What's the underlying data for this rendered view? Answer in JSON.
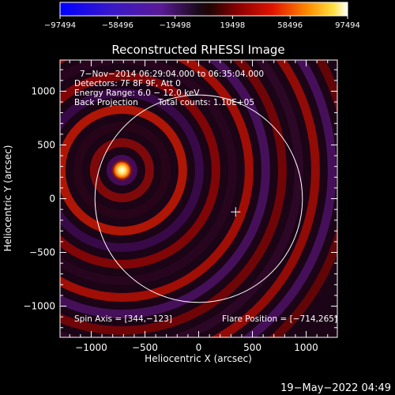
{
  "chart_data": {
    "type": "heatmap",
    "title": "Reconstructed RHESSI Image",
    "xlabel": "Heliocentric X (arcsec)",
    "ylabel": "Heliocentric Y (arcsec)",
    "xlim": [
      -1290,
      1290
    ],
    "ylim": [
      -1290,
      1290
    ],
    "x_ticks": [
      {
        "value": -1000,
        "label": "−1000"
      },
      {
        "value": -500,
        "label": "−500"
      },
      {
        "value": 0,
        "label": "0"
      },
      {
        "value": 500,
        "label": "500"
      },
      {
        "value": 1000,
        "label": "1000"
      }
    ],
    "y_ticks": [
      {
        "value": 1000,
        "label": "1000"
      },
      {
        "value": 500,
        "label": "500"
      },
      {
        "value": 0,
        "label": "0"
      },
      {
        "value": -500,
        "label": "−500"
      },
      {
        "value": -1000,
        "label": "−1000"
      }
    ],
    "colorbar": {
      "min": -97494,
      "max": 97494,
      "ticks": [
        {
          "value": -97494,
          "label": "−97494"
        },
        {
          "value": -58496,
          "label": "−58496"
        },
        {
          "value": -19498,
          "label": "−19498"
        },
        {
          "value": 19498,
          "label": "19498"
        },
        {
          "value": 58496,
          "label": "58496"
        },
        {
          "value": 97494,
          "label": "97494"
        }
      ]
    },
    "annotations": {
      "time_range": "7−Nov−2014 06:29:04.000 to 06:35:04.000",
      "detectors": "Detectors: 7F 8F 9F, Att 0",
      "energy_range": "Energy Range: 6.0 − 12.0 keV",
      "method": "Back Projection",
      "total_counts": "Total counts: 1.10E+05",
      "spin_axis": "Spin Axis = [344,−123]",
      "flare_position": "Flare Position = [−714,265]"
    },
    "flare_position": [
      -714,
      265
    ],
    "spin_axis": [
      344,
      -123
    ],
    "solar_radius_arcsec": 965
  },
  "footer": {
    "timestamp": "19−May−2022 04:49"
  },
  "colors": {
    "background": "#000000",
    "foreground": "#ffffff"
  }
}
